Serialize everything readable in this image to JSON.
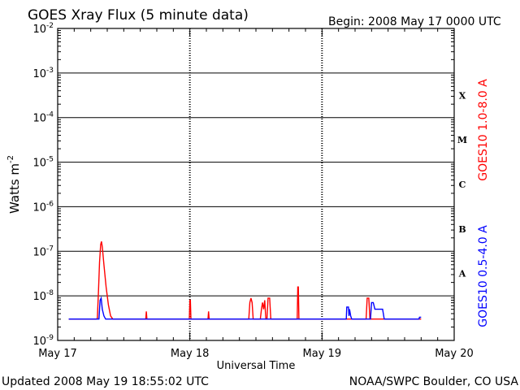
{
  "header": {
    "title": "GOES Xray Flux (5 minute data)",
    "begin": "Begin:  2008 May 17 0000 UTC"
  },
  "footer": {
    "updated": "Updated 2008 May 19 18:55:02 UTC",
    "credit": "NOAA/SWPC Boulder, CO USA"
  },
  "colors": {
    "long": "#ff0000",
    "short": "#0000ff",
    "axis": "#000000"
  },
  "chart_data": {
    "type": "line",
    "xlabel": "Universal Time",
    "ylabel": {
      "base": "Watts m",
      "exp": "-2"
    },
    "x_range_hours": [
      0,
      72
    ],
    "x_ticks": [
      {
        "h": 0,
        "label": "May 17"
      },
      {
        "h": 24,
        "label": "May 18"
      },
      {
        "h": 48,
        "label": "May 19"
      },
      {
        "h": 72,
        "label": "May 20"
      }
    ],
    "y_scale": "log",
    "y_range_exp": [
      -9,
      -2
    ],
    "y_ticks": [
      {
        "exp": -2,
        "mant": "10",
        "sup": "-2"
      },
      {
        "exp": -3,
        "mant": "10",
        "sup": "-3"
      },
      {
        "exp": -4,
        "mant": "10",
        "sup": "-4"
      },
      {
        "exp": -5,
        "mant": "10",
        "sup": "-5"
      },
      {
        "exp": -6,
        "mant": "10",
        "sup": "-6"
      },
      {
        "exp": -7,
        "mant": "10",
        "sup": "-7"
      },
      {
        "exp": -8,
        "mant": "10",
        "sup": "-8"
      },
      {
        "exp": -9,
        "mant": "10",
        "sup": "-9"
      }
    ],
    "flare_classes": [
      {
        "label": "X",
        "exp_center": -3.5
      },
      {
        "label": "M",
        "exp_center": -4.5
      },
      {
        "label": "C",
        "exp_center": -5.5
      },
      {
        "label": "B",
        "exp_center": -6.5
      },
      {
        "label": "A",
        "exp_center": -7.5
      }
    ],
    "series": [
      {
        "name": "GOES10 1.0-8.0 A",
        "color": "#ff0000",
        "points": [
          [
            2.0,
            -8.52
          ],
          [
            7.0,
            -8.52
          ],
          [
            7.2,
            -8.51
          ],
          [
            7.4,
            -7.9
          ],
          [
            7.6,
            -7.25
          ],
          [
            7.8,
            -6.85
          ],
          [
            7.95,
            -6.78
          ],
          [
            8.1,
            -6.9
          ],
          [
            8.4,
            -7.3
          ],
          [
            8.8,
            -7.8
          ],
          [
            9.2,
            -8.2
          ],
          [
            9.6,
            -8.45
          ],
          [
            10.0,
            -8.52
          ],
          [
            16.0,
            -8.52
          ],
          [
            16.1,
            -8.35
          ],
          [
            16.2,
            -8.52
          ],
          [
            23.9,
            -8.52
          ],
          [
            24.0,
            -8.1
          ],
          [
            24.1,
            -8.1
          ],
          [
            24.2,
            -8.52
          ],
          [
            27.3,
            -8.52
          ],
          [
            27.4,
            -8.35
          ],
          [
            27.5,
            -8.52
          ],
          [
            34.7,
            -8.52
          ],
          [
            34.9,
            -8.15
          ],
          [
            35.1,
            -8.05
          ],
          [
            35.3,
            -8.15
          ],
          [
            35.5,
            -8.52
          ],
          [
            36.8,
            -8.52
          ],
          [
            37.0,
            -8.3
          ],
          [
            37.2,
            -8.15
          ],
          [
            37.4,
            -8.3
          ],
          [
            37.6,
            -8.1
          ],
          [
            37.8,
            -8.52
          ],
          [
            38.0,
            -8.52
          ],
          [
            38.2,
            -8.05
          ],
          [
            38.5,
            -8.05
          ],
          [
            38.7,
            -8.52
          ],
          [
            43.5,
            -8.52
          ],
          [
            43.6,
            -7.8
          ],
          [
            43.7,
            -7.8
          ],
          [
            43.8,
            -8.52
          ],
          [
            56.0,
            -8.52
          ],
          [
            56.2,
            -8.05
          ],
          [
            56.5,
            -8.05
          ],
          [
            56.7,
            -8.52
          ],
          [
            66.0,
            -8.52
          ]
        ]
      },
      {
        "name": "GOES10 0.5-4.0 A",
        "color": "#0000ff",
        "points": [
          [
            2.0,
            -8.52
          ],
          [
            7.5,
            -8.52
          ],
          [
            7.7,
            -8.1
          ],
          [
            7.9,
            -8.05
          ],
          [
            8.1,
            -8.3
          ],
          [
            8.4,
            -8.45
          ],
          [
            8.7,
            -8.52
          ],
          [
            52.4,
            -8.52
          ],
          [
            52.5,
            -8.25
          ],
          [
            52.8,
            -8.25
          ],
          [
            52.9,
            -8.45
          ],
          [
            53.0,
            -8.3
          ],
          [
            53.2,
            -8.45
          ],
          [
            53.4,
            -8.52
          ],
          [
            56.8,
            -8.52
          ],
          [
            57.0,
            -8.15
          ],
          [
            57.3,
            -8.15
          ],
          [
            57.6,
            -8.3
          ],
          [
            59.0,
            -8.3
          ],
          [
            59.3,
            -8.52
          ],
          [
            65.6,
            -8.52
          ],
          [
            65.7,
            -8.48
          ],
          [
            66.0,
            -8.48
          ]
        ]
      }
    ]
  }
}
